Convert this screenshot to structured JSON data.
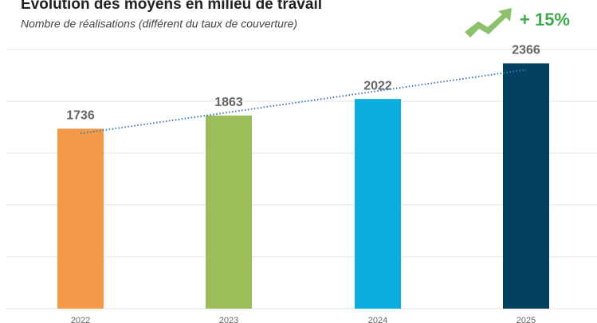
{
  "chart_data": {
    "type": "bar",
    "title": "Évolution des moyens en milieu de travail",
    "subtitle": "Nombre de réalisations (différent du taux de couverture)",
    "annotation": "+ 15%",
    "categories": [
      "2022",
      "2023",
      "2024",
      "2025"
    ],
    "values": [
      1736,
      1863,
      2022,
      2366
    ],
    "colors": [
      "#f39a4a",
      "#9bbd5a",
      "#0aaede",
      "#02415f"
    ],
    "ylim": [
      0,
      2500
    ],
    "yticks": [
      0,
      500,
      1000,
      1500,
      2000,
      2500
    ],
    "grid": true,
    "trendline": true
  }
}
